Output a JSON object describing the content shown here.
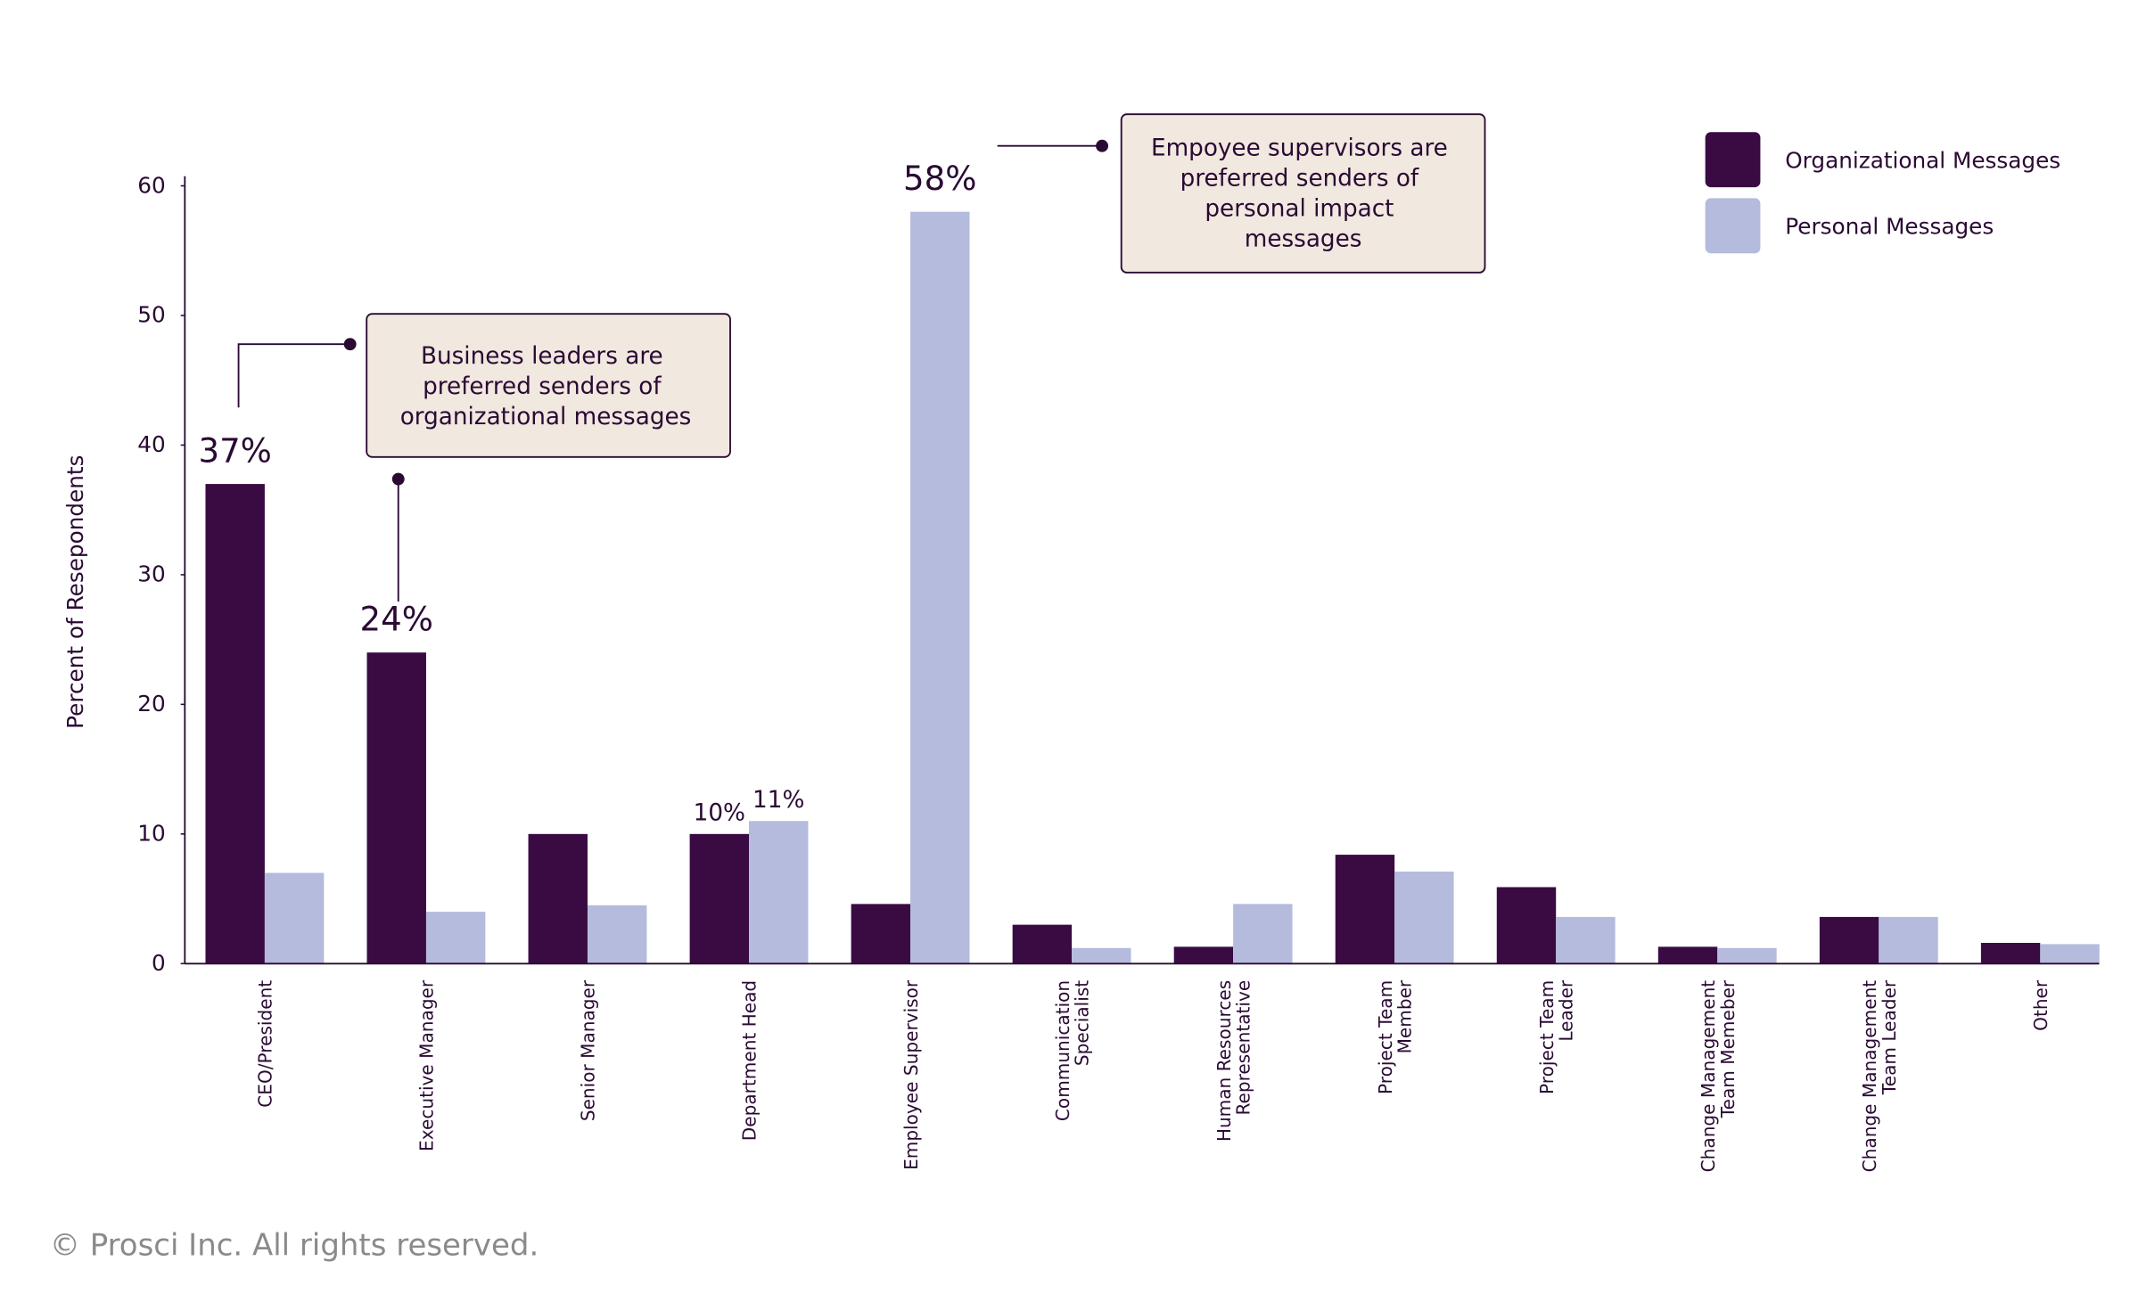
{
  "chart_data": {
    "type": "bar",
    "y_label": "Percent of Resepondents",
    "categories": [
      [
        "CEO/President"
      ],
      [
        "Executive Manager"
      ],
      [
        "Senior Manager"
      ],
      [
        "Department Head"
      ],
      [
        "Employee Supervisor"
      ],
      [
        "Communication",
        "Specialist"
      ],
      [
        "Human Resources",
        "Representative"
      ],
      [
        "Project Team",
        "Member"
      ],
      [
        "Project Team",
        "Leader"
      ],
      [
        "Change Management",
        "Team Memeber"
      ],
      [
        "Change Management",
        "Team Leader"
      ],
      [
        "Other"
      ]
    ],
    "series": [
      {
        "name": "Organizational Messages",
        "color": "#3a0a42",
        "values": [
          37,
          24,
          10,
          10,
          4.6,
          3,
          1.3,
          8.4,
          5.9,
          1.3,
          3.6,
          1.6
        ],
        "value_labels": [
          "37%",
          "24%",
          null,
          "10%",
          null,
          null,
          null,
          null,
          null,
          null,
          null,
          null
        ]
      },
      {
        "name": "Personal Messages",
        "color": "#b4bbdc",
        "values": [
          7,
          4,
          4.5,
          11,
          58,
          1.2,
          4.6,
          7.1,
          3.6,
          1.2,
          3.6,
          1.5
        ],
        "value_labels": [
          null,
          null,
          null,
          "11%",
          "58%",
          null,
          null,
          null,
          null,
          null,
          null,
          null
        ]
      }
    ],
    "ylim": [
      0,
      60
    ],
    "yticks": [
      0,
      10,
      20,
      30,
      40,
      50,
      60
    ],
    "annotations": [
      {
        "lines": [
          "Business leaders are",
          "preferred senders of",
          "organizational messages"
        ]
      },
      {
        "lines": [
          "Empoyee supervisors are",
          "preferred senders of",
          "personal impact",
          "messages"
        ]
      }
    ],
    "footer": "© Prosci Inc. All rights reserved."
  }
}
